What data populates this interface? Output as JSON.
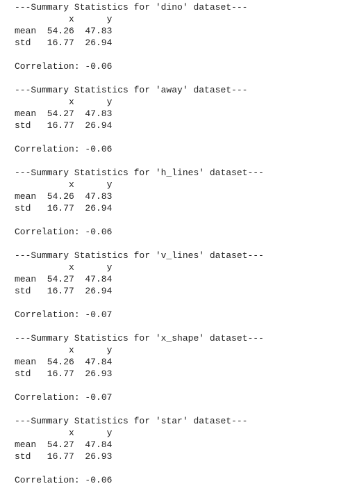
{
  "blocks": [
    {
      "header": "---Summary Statistics for 'dino' dataset---",
      "columns": [
        "x",
        "y"
      ],
      "rows": [
        {
          "label": "mean",
          "values": [
            "54.26",
            "47.83"
          ]
        },
        {
          "label": "std",
          "values": [
            "16.77",
            "26.94"
          ]
        }
      ],
      "correlation": "Correlation: -0.06"
    },
    {
      "header": "---Summary Statistics for 'away' dataset---",
      "columns": [
        "x",
        "y"
      ],
      "rows": [
        {
          "label": "mean",
          "values": [
            "54.27",
            "47.83"
          ]
        },
        {
          "label": "std",
          "values": [
            "16.77",
            "26.94"
          ]
        }
      ],
      "correlation": "Correlation: -0.06"
    },
    {
      "header": "---Summary Statistics for 'h_lines' dataset---",
      "columns": [
        "x",
        "y"
      ],
      "rows": [
        {
          "label": "mean",
          "values": [
            "54.26",
            "47.83"
          ]
        },
        {
          "label": "std",
          "values": [
            "16.77",
            "26.94"
          ]
        }
      ],
      "correlation": "Correlation: -0.06"
    },
    {
      "header": "---Summary Statistics for 'v_lines' dataset---",
      "columns": [
        "x",
        "y"
      ],
      "rows": [
        {
          "label": "mean",
          "values": [
            "54.27",
            "47.84"
          ]
        },
        {
          "label": "std",
          "values": [
            "16.77",
            "26.94"
          ]
        }
      ],
      "correlation": "Correlation: -0.07"
    },
    {
      "header": "---Summary Statistics for 'x_shape' dataset---",
      "columns": [
        "x",
        "y"
      ],
      "rows": [
        {
          "label": "mean",
          "values": [
            "54.26",
            "47.84"
          ]
        },
        {
          "label": "std",
          "values": [
            "16.77",
            "26.93"
          ]
        }
      ],
      "correlation": "Correlation: -0.07"
    },
    {
      "header": "---Summary Statistics for 'star' dataset---",
      "columns": [
        "x",
        "y"
      ],
      "rows": [
        {
          "label": "mean",
          "values": [
            "54.27",
            "47.84"
          ]
        },
        {
          "label": "std",
          "values": [
            "16.77",
            "26.93"
          ]
        }
      ],
      "correlation": "Correlation: -0.06"
    }
  ]
}
